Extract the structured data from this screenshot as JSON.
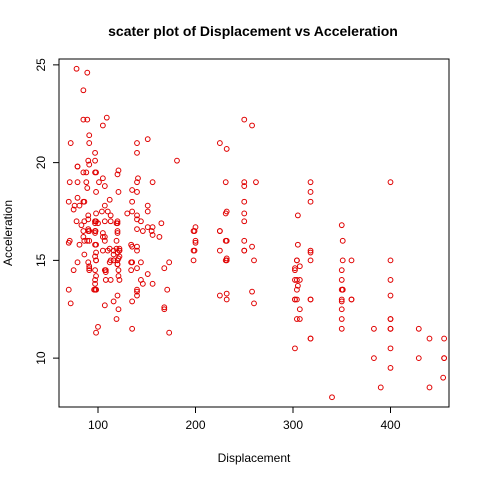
{
  "chart_data": {
    "type": "scatter",
    "title": "scater plot of Displacement vs Acceleration",
    "xlabel": "Displacement",
    "ylabel": "Acceleration",
    "xlim": [
      60,
      460
    ],
    "ylim": [
      7.5,
      25.3
    ],
    "xticks": [
      100,
      200,
      300,
      400
    ],
    "yticks": [
      10,
      15,
      20,
      25
    ],
    "grid": false,
    "legend": "none",
    "point_color": "#e00000",
    "series": [
      {
        "points": [
          [
            307,
            12.0
          ],
          [
            350,
            11.5
          ],
          [
            318,
            11.0
          ],
          [
            304,
            12.0
          ],
          [
            302,
            10.5
          ],
          [
            429,
            10.0
          ],
          [
            454,
            9.0
          ],
          [
            440,
            8.5
          ],
          [
            455,
            10.0
          ],
          [
            390,
            8.5
          ],
          [
            383,
            10.0
          ],
          [
            340,
            8.0
          ],
          [
            400,
            9.5
          ],
          [
            455,
            10.0
          ],
          [
            113,
            15.0
          ],
          [
            198,
            15.5
          ],
          [
            199,
            15.5
          ],
          [
            200,
            16.0
          ],
          [
            97,
            14.5
          ],
          [
            97,
            20.5
          ],
          [
            110,
            17.5
          ],
          [
            107,
            14.5
          ],
          [
            104,
            17.5
          ],
          [
            121,
            12.5
          ],
          [
            360,
            15.0
          ],
          [
            307,
            14.0
          ],
          [
            318,
            15.0
          ],
          [
            304,
            13.5
          ],
          [
            140,
            19.0
          ],
          [
            232,
            13.0
          ],
          [
            225,
            15.5
          ],
          [
            250,
            15.5
          ],
          [
            250,
            15.5
          ],
          [
            400,
            12.0
          ],
          [
            400,
            11.5
          ],
          [
            350,
            13.5
          ],
          [
            318,
            13.0
          ],
          [
            383,
            11.5
          ],
          [
            400,
            10.5
          ],
          [
            71,
            19.0
          ],
          [
            113,
            14.0
          ],
          [
            98,
            15.0
          ],
          [
            97,
            13.5
          ],
          [
            140,
            18.5
          ],
          [
            122,
            14.0
          ],
          [
            116,
            15.5
          ],
          [
            79,
            19.0
          ],
          [
            88,
            19.0
          ],
          [
            71,
            16.0
          ],
          [
            72,
            21.0
          ],
          [
            97,
            19.5
          ],
          [
            91,
            21.0
          ],
          [
            113,
            17.0
          ],
          [
            97.5,
            16.5
          ],
          [
            97,
            17.0
          ],
          [
            140,
            20.5
          ],
          [
            122,
            15.5
          ],
          [
            350,
            12.0
          ],
          [
            304,
            15.0
          ],
          [
            302,
            14.5
          ],
          [
            304,
            13.0
          ],
          [
            350,
            12.5
          ],
          [
            307,
            12.5
          ],
          [
            302,
            13.0
          ],
          [
            318,
            11.0
          ],
          [
            429,
            11.5
          ],
          [
            400,
            12.0
          ],
          [
            351,
            13.5
          ],
          [
            318,
            19.0
          ],
          [
            440,
            11.0
          ],
          [
            455,
            11.0
          ],
          [
            360,
            13.0
          ],
          [
            225,
            16.5
          ],
          [
            250,
            16.0
          ],
          [
            232,
            17.5
          ],
          [
            250,
            18.0
          ],
          [
            198,
            16.5
          ],
          [
            97,
            17.0
          ],
          [
            400,
            19.0
          ],
          [
            400,
            15.0
          ],
          [
            360,
            13.0
          ],
          [
            350,
            14.5
          ],
          [
            232,
            16.0
          ],
          [
            350,
            14.0
          ],
          [
            400,
            14.0
          ],
          [
            351,
            13.5
          ],
          [
            97,
            16.5
          ],
          [
            350,
            13.0
          ],
          [
            318,
            13.0
          ],
          [
            231,
            15.0
          ],
          [
            304,
            15.0
          ],
          [
            318,
            15.5
          ],
          [
            97,
            16.5
          ],
          [
            140,
            13.5
          ],
          [
            108,
            14.5
          ],
          [
            120,
            16.5
          ],
          [
            85,
            18.0
          ],
          [
            250,
            17.0
          ],
          [
            91,
            16.0
          ],
          [
            155,
            16.5
          ],
          [
            98,
            13.5
          ],
          [
            107,
            16.0
          ],
          [
            122,
            15.5
          ],
          [
            70,
            13.5
          ],
          [
            121,
            14.5
          ],
          [
            121,
            18.5
          ],
          [
            140,
            15.5
          ],
          [
            260,
            12.8
          ],
          [
            258,
            13.4
          ],
          [
            140,
            16.6
          ],
          [
            302,
            13.0
          ],
          [
            120,
            15.4
          ],
          [
            97,
            16.4
          ],
          [
            156,
            16.3
          ],
          [
            144,
            14.0
          ],
          [
            98,
            17.0
          ],
          [
            134,
            14.9
          ],
          [
            119,
            16.0
          ],
          [
            105,
            15.5
          ],
          [
            134,
            15.8
          ],
          [
            90,
            14.9
          ],
          [
            156,
            19.0
          ],
          [
            151,
            21.2
          ],
          [
            120,
            16.4
          ],
          [
            75,
            17.6
          ],
          [
            96,
            13.5
          ],
          [
            91,
            21.4
          ],
          [
            97,
            15.2
          ],
          [
            89,
            22.2
          ],
          [
            91,
            16.5
          ],
          [
            98,
            17.4
          ],
          [
            89,
            18.7
          ],
          [
            101,
            19.0
          ],
          [
            76,
            17.8
          ],
          [
            107,
            18.8
          ],
          [
            86,
            17.0
          ],
          [
            135,
            17.5
          ],
          [
            225,
            21.0
          ],
          [
            78,
            17.0
          ],
          [
            140,
            21.0
          ],
          [
            163,
            16.2
          ],
          [
            400,
            11.5
          ],
          [
            350,
            12.9
          ],
          [
            98,
            18.5
          ],
          [
            86,
            16.0
          ],
          [
            97,
            15.8
          ],
          [
            75,
            14.5
          ],
          [
            105,
            16.4
          ],
          [
            79,
            18.2
          ],
          [
            90,
            20.1
          ],
          [
            85,
            22.2
          ],
          [
            70,
            18.0
          ],
          [
            88,
            19.5
          ],
          [
            98,
            15.4
          ],
          [
            78,
            24.8
          ],
          [
            85,
            16.2
          ],
          [
            120,
            14.8
          ],
          [
            107,
            17.0
          ],
          [
            119,
            15.6
          ],
          [
            141,
            19.2
          ],
          [
            146,
            13.8
          ],
          [
            121,
            19.6
          ],
          [
            119,
            16.9
          ],
          [
            305,
            17.3
          ],
          [
            318,
            18.5
          ],
          [
            305,
            15.8
          ],
          [
            231,
            16.0
          ],
          [
            258,
            15.7
          ],
          [
            168,
            12.6
          ],
          [
            200,
            16.7
          ],
          [
            231,
            17.4
          ],
          [
            173,
            11.3
          ],
          [
            173,
            14.9
          ],
          [
            181,
            20.1
          ],
          [
            262,
            19.0
          ],
          [
            140,
            17.3
          ],
          [
            85,
            23.7
          ],
          [
            89,
            24.6
          ],
          [
            91,
            14.7
          ],
          [
            100,
            11.6
          ],
          [
            232,
            15.1
          ],
          [
            135,
            11.5
          ],
          [
            105,
            16.2
          ],
          [
            112,
            14.9
          ],
          [
            140,
            13.2
          ],
          [
            91,
            14.6
          ],
          [
            116,
            12.9
          ],
          [
            108,
            14.0
          ],
          [
            171,
            13.5
          ],
          [
            168,
            14.6
          ],
          [
            151,
            14.3
          ],
          [
            81,
            15.8
          ],
          [
            120,
            19.4
          ],
          [
            107,
            16.2
          ],
          [
            86,
            18.0
          ],
          [
            110,
            15.5
          ],
          [
            72,
            12.8
          ],
          [
            107,
            17.8
          ],
          [
            165,
            16.9
          ],
          [
            144,
            17.0
          ],
          [
            232,
            20.7
          ],
          [
            91,
            19.9
          ],
          [
            98,
            15.0
          ],
          [
            112,
            18.1
          ],
          [
            120,
            17.0
          ],
          [
            120,
            15.0
          ],
          [
            122,
            15.2
          ],
          [
            85,
            19.5
          ],
          [
            79,
            19.8
          ],
          [
            112,
            15.6
          ],
          [
            120,
            16.9
          ],
          [
            168,
            12.5
          ],
          [
            140,
            13.4
          ],
          [
            91,
            14.5
          ],
          [
            107,
            12.7
          ],
          [
            98,
            14.2
          ],
          [
            97,
            13.8
          ],
          [
            90,
            17.1
          ],
          [
            90,
            16.6
          ],
          [
            90,
            17.3
          ],
          [
            98,
            13.5
          ],
          [
            121,
            14.2
          ],
          [
            108,
            14.4
          ],
          [
            120,
            13.2
          ],
          [
            151,
            16.7
          ],
          [
            135,
            18.6
          ],
          [
            156,
            16.7
          ],
          [
            116,
            15.3
          ],
          [
            97,
            14.0
          ],
          [
            135,
            15.7
          ],
          [
            134,
            14.5
          ],
          [
            81,
            17.8
          ],
          [
            86,
            15.3
          ],
          [
            89,
            16.0
          ],
          [
            97,
            16.9
          ],
          [
            98,
            15.8
          ],
          [
            135,
            14.9
          ],
          [
            100,
            16.9
          ],
          [
            119,
            12.0
          ],
          [
            151,
            17.5
          ],
          [
            116,
            15.0
          ],
          [
            90,
            16.5
          ],
          [
            140,
            14.6
          ],
          [
            146,
            16.5
          ],
          [
            105,
            19.2
          ],
          [
            113,
            17.3
          ],
          [
            122,
            15.6
          ],
          [
            109,
            22.3
          ],
          [
            98,
            11.3
          ],
          [
            79,
            19.8
          ],
          [
            120,
            14.8
          ],
          [
            105,
            21.9
          ],
          [
            225,
            16.5
          ],
          [
            232,
            15.0
          ],
          [
            250,
            19.0
          ],
          [
            258,
            21.9
          ],
          [
            250,
            22.2
          ],
          [
            135,
            18.0
          ],
          [
            98,
            19.5
          ],
          [
            140,
            17.1
          ],
          [
            85,
            16.5
          ],
          [
            130,
            17.4
          ],
          [
            144,
            14.9
          ],
          [
            121,
            15.1
          ],
          [
            151,
            17.8
          ],
          [
            135,
            12.9
          ],
          [
            97,
            20.1
          ],
          [
            140,
            15.7
          ],
          [
            79,
            14.9
          ],
          [
            120,
            15.4
          ],
          [
            156,
            13.8
          ],
          [
            83,
            16.8
          ],
          [
            70,
            15.9
          ],
          [
            198,
            15.0
          ],
          [
            250,
            18.8
          ],
          [
            232,
            13.3
          ],
          [
            225,
            13.2
          ],
          [
            231,
            19.0
          ],
          [
            260,
            15.0
          ],
          [
            250,
            17.4
          ],
          [
            200,
            15.9
          ],
          [
            199,
            16.5
          ],
          [
            307,
            14.7
          ],
          [
            350,
            16.8
          ],
          [
            400,
            13.2
          ],
          [
            318,
            18.0
          ],
          [
            302,
            14.6
          ],
          [
            305,
            13.7
          ],
          [
            318,
            15.4
          ],
          [
            304,
            14.0
          ],
          [
            351,
            16.0
          ],
          [
            302,
            14.0
          ],
          [
            351,
            15.0
          ]
        ]
      }
    ]
  }
}
